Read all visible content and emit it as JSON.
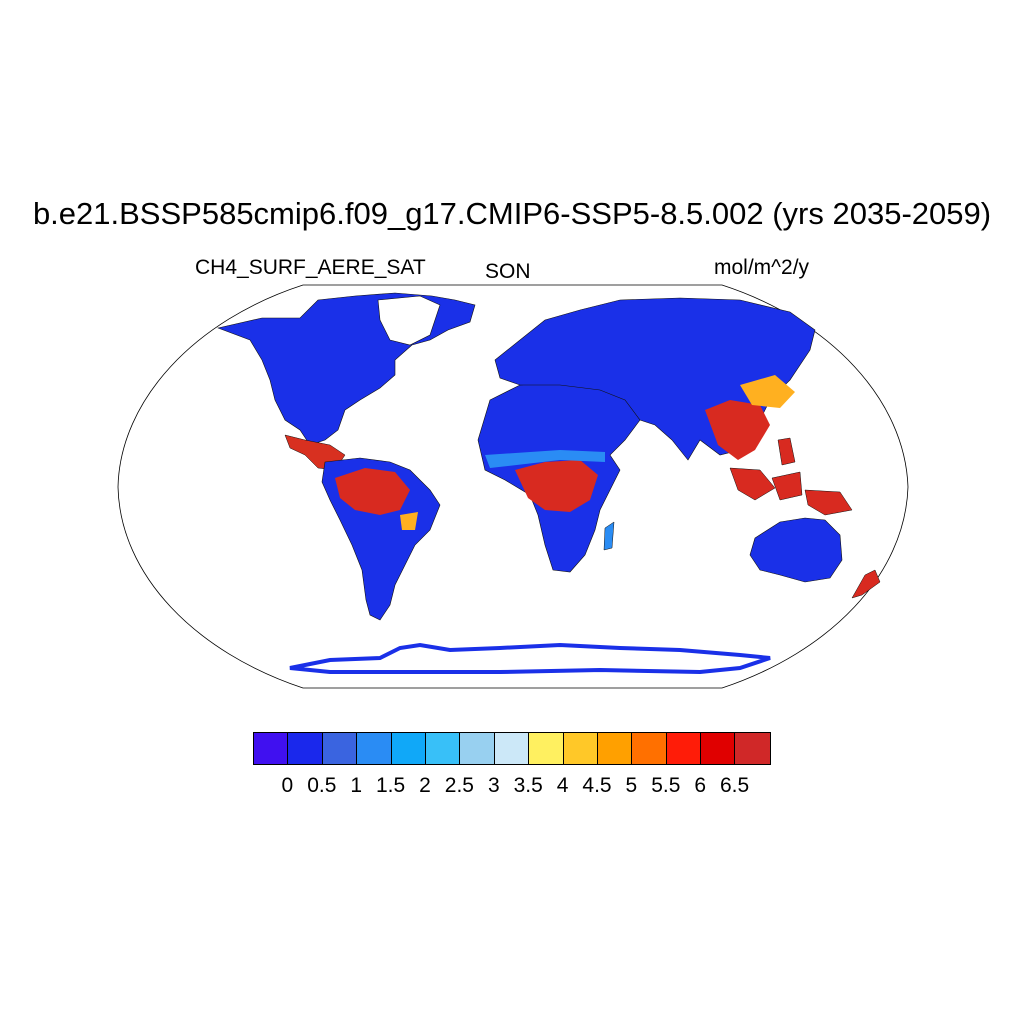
{
  "title": "b.e21.BSSP585cmip6.f09_g17.CMIP6-SSP5-8.5.002 (yrs 2035-2059)",
  "variable": "CH4_SURF_AERE_SAT",
  "season": "SON",
  "units": "mol/m^2/y",
  "colorbar": {
    "colors": [
      "#4010f0",
      "#1a28ec",
      "#3a64e0",
      "#2a8cf4",
      "#10a8f8",
      "#38c0f8",
      "#98d0f0",
      "#cce8f8",
      "#fff060",
      "#ffc828",
      "#ffa000",
      "#ff7000",
      "#ff1c08",
      "#e00000",
      "#d02828"
    ],
    "labels": [
      "0",
      "0.5",
      "1",
      "1.5",
      "2",
      "2.5",
      "3",
      "3.5",
      "4",
      "4.5",
      "5",
      "5.5",
      "6",
      "6.5"
    ]
  }
}
